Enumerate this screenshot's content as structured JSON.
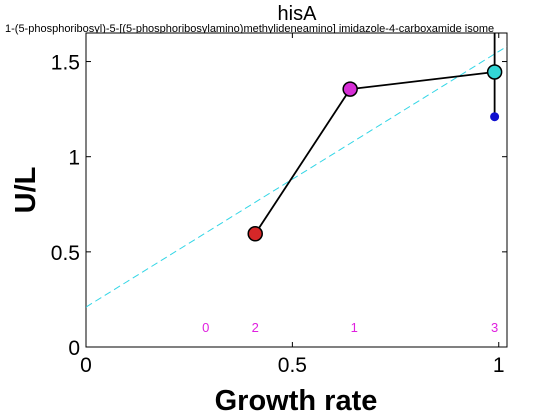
{
  "chart_data": {
    "type": "scatter",
    "title": "hisA",
    "subtitle": "1-(5-phosphoribosyl)-5-[(5-phosphoribosylamino)methylideneamino] imidazole-4-carboxamide isome",
    "xlabel": "Growth rate",
    "ylabel": "U/L",
    "xlim": [
      0,
      1.02
    ],
    "ylim": [
      0,
      1.65
    ],
    "xticks": [
      "0",
      "0.5",
      "1"
    ],
    "xtick_values": [
      0,
      0.5,
      1
    ],
    "yticks": [
      "0",
      "0.5",
      "1",
      "1.5"
    ],
    "ytick_values": [
      0,
      0.5,
      1,
      1.5
    ],
    "grid": false,
    "series": [
      {
        "points": [
          {
            "x": 0.41,
            "y": 0.595,
            "color": "#d62728",
            "err_low": 0.565,
            "err_high": 0.625
          },
          {
            "x": 0.64,
            "y": 1.355,
            "color": "#d62fd6",
            "err_low": 1.345,
            "err_high": 1.365
          },
          {
            "x": 0.99,
            "y": 1.445,
            "color": "#33d6d6",
            "err_low": 1.21,
            "err_high": 1.7
          }
        ],
        "line_color": "#000000"
      }
    ],
    "extra_point": {
      "x": 0.99,
      "y": 1.21,
      "color": "#1010d0"
    },
    "fit_line": {
      "x": [
        0,
        1.02
      ],
      "y": [
        0.21,
        1.58
      ],
      "color": "#33d6e6",
      "style": "dashed"
    },
    "counts": [
      {
        "x": 0.29,
        "label": "0"
      },
      {
        "x": 0.41,
        "label": "2"
      },
      {
        "x": 0.65,
        "label": "1"
      },
      {
        "x": 0.99,
        "label": "3"
      }
    ],
    "counts_y": 0.1,
    "counts_color": "#e020e0"
  }
}
